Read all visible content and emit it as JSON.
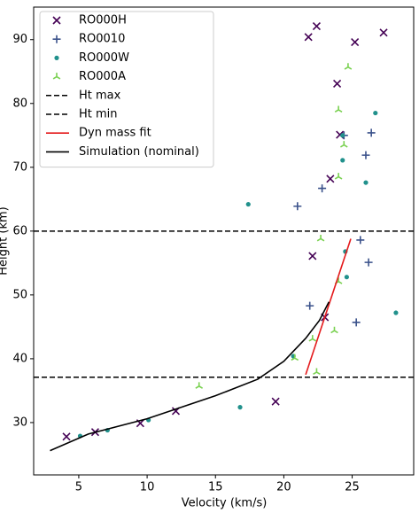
{
  "chart_data": {
    "type": "scatter",
    "x_label": "Velocity (km/s)",
    "y_label": "Height (km)",
    "xlim": [
      1.7,
      29.5
    ],
    "ylim": [
      21.8,
      95.1
    ],
    "xticks": [
      5,
      10,
      15,
      20,
      25
    ],
    "yticks": [
      30,
      40,
      50,
      60,
      70,
      80,
      90
    ],
    "legend": "upper left",
    "series": [
      {
        "name": "RO000H",
        "color": "#440154",
        "marker": "x",
        "x": [
          4.1,
          6.2,
          9.5,
          12.1,
          19.4,
          23.0,
          22.1,
          23.4,
          24.1,
          23.9,
          25.2,
          21.8,
          22.4,
          27.3
        ],
        "values": [
          27.8,
          28.5,
          29.9,
          31.8,
          33.3,
          46.5,
          56.1,
          68.2,
          75.1,
          83.1,
          89.6,
          90.4,
          92.1,
          91.1
        ]
      },
      {
        "name": "RO0010",
        "color": "#3b528b",
        "marker": "plus",
        "x": [
          21.0,
          22.8,
          26.0,
          26.4,
          24.4,
          25.6,
          26.2,
          21.9,
          25.3
        ],
        "values": [
          63.9,
          66.7,
          71.9,
          75.4,
          75.0,
          58.6,
          55.1,
          48.3,
          45.7
        ]
      },
      {
        "name": "RO000W",
        "color": "#21918c",
        "marker": "dot",
        "x": [
          5.1,
          7.1,
          10.1,
          16.8,
          20.7,
          24.6,
          24.5,
          28.2,
          17.4,
          26.0,
          24.3,
          24.3,
          26.7
        ],
        "values": [
          27.9,
          28.8,
          30.4,
          32.4,
          40.4,
          52.8,
          56.8,
          47.2,
          64.2,
          67.6,
          71.1,
          75.0,
          78.5
        ]
      },
      {
        "name": "RO000A",
        "color": "#7ad151",
        "marker": "tri",
        "x": [
          13.8,
          20.8,
          22.4,
          22.1,
          23.7,
          24.0,
          22.7,
          24.7,
          24.0,
          24.4,
          24.0
        ],
        "values": [
          35.7,
          40.1,
          37.9,
          43.1,
          44.4,
          52.1,
          58.8,
          85.7,
          79.0,
          73.5,
          68.5
        ]
      }
    ],
    "hlines": [
      {
        "name": "Ht max",
        "y": 60.0,
        "color": "#000000"
      },
      {
        "name": "Ht min",
        "y": 37.1,
        "color": "#000000"
      }
    ],
    "lines": [
      {
        "name": "Dyn mass fit",
        "color": "#e41a1c",
        "x": [
          21.6,
          24.9
        ],
        "values": [
          37.5,
          58.8
        ]
      },
      {
        "name": "Simulation (nominal)",
        "color": "#000000",
        "x": [
          2.9,
          5.7,
          10.0,
          15.0,
          18.1,
          20.0,
          21.6,
          22.6,
          23.3
        ],
        "values": [
          25.6,
          28.2,
          30.6,
          34.2,
          36.8,
          39.6,
          43.2,
          46.0,
          48.9
        ]
      }
    ]
  }
}
